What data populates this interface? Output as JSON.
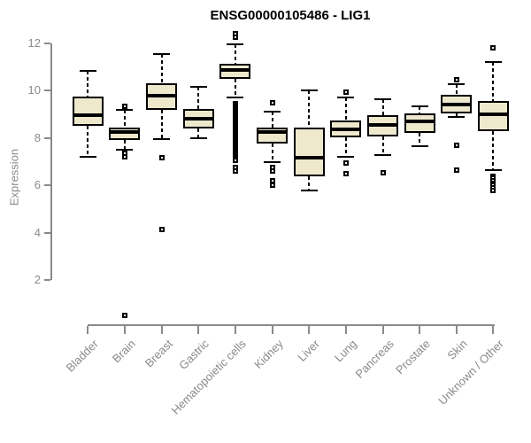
{
  "colors": {
    "box_fill": "#EEE8CD",
    "box_border": "#000000",
    "axis": "#8a8a8a",
    "tick_text": "#8a8a8a",
    "title_text": "#000000",
    "background": "#ffffff"
  },
  "chart_data": {
    "type": "boxplot",
    "title": "ENSG00000105486 - LIG1",
    "ylabel": "Expression",
    "xlabel": "",
    "grid": false,
    "ylim": [
      0.4,
      12.45
    ],
    "y_ticks": [
      2,
      4,
      6,
      8,
      10,
      12
    ],
    "x_label_rotation_deg": 45,
    "categories": [
      "Bladder",
      "Brain",
      "Breast",
      "Gastric",
      "Hematopoietic cells",
      "Kidney",
      "Liver",
      "Lung",
      "Pancreas",
      "Prostate",
      "Skin",
      "Unknown / Other"
    ],
    "series": [
      {
        "name": "Bladder",
        "whisker_low": 7.2,
        "q1": 8.5,
        "median": 8.95,
        "q3": 9.75,
        "whisker_high": 10.85,
        "outliers": []
      },
      {
        "name": "Brain",
        "whisker_low": 7.5,
        "q1": 7.9,
        "median": 8.27,
        "q3": 8.45,
        "whisker_high": 9.2,
        "outliers": [
          9.35,
          7.35,
          7.2,
          0.5
        ]
      },
      {
        "name": "Breast",
        "whisker_low": 7.95,
        "q1": 9.2,
        "median": 9.8,
        "q3": 10.33,
        "whisker_high": 11.55,
        "outliers": [
          7.15,
          4.15
        ]
      },
      {
        "name": "Gastric",
        "whisker_low": 8.0,
        "q1": 8.4,
        "median": 8.82,
        "q3": 9.22,
        "whisker_high": 10.15,
        "outliers": []
      },
      {
        "name": "Hematopoietic cells",
        "whisker_low": 9.7,
        "q1": 10.5,
        "median": 10.88,
        "q3": 11.15,
        "whisker_high": 11.95,
        "outliers": [
          12.4,
          12.25,
          9.45,
          9.39,
          9.33,
          9.27,
          9.21,
          9.15,
          9.09,
          9.03,
          8.97,
          8.91,
          8.85,
          8.79,
          8.73,
          8.67,
          8.61,
          8.55,
          8.49,
          8.43,
          8.37,
          8.31,
          8.25,
          8.19,
          8.13,
          8.07,
          8.01,
          7.95,
          7.89,
          7.83,
          7.77,
          7.71,
          7.65,
          7.59,
          7.53,
          7.47,
          7.41,
          7.35,
          7.29,
          7.23,
          7.17,
          7.11,
          7.05,
          6.75,
          6.6
        ]
      },
      {
        "name": "Kidney",
        "whisker_low": 7.0,
        "q1": 7.76,
        "median": 8.25,
        "q3": 8.43,
        "whisker_high": 9.1,
        "outliers": [
          9.5,
          6.75,
          6.6,
          6.2,
          6.0
        ]
      },
      {
        "name": "Liver",
        "whisker_low": 5.8,
        "q1": 6.4,
        "median": 7.15,
        "q3": 8.43,
        "whisker_high": 10.0,
        "outliers": []
      },
      {
        "name": "Lung",
        "whisker_low": 7.2,
        "q1": 8.03,
        "median": 8.37,
        "q3": 8.74,
        "whisker_high": 9.72,
        "outliers": [
          9.95,
          6.95,
          6.5
        ]
      },
      {
        "name": "Pancreas",
        "whisker_low": 7.28,
        "q1": 8.06,
        "median": 8.55,
        "q3": 8.95,
        "whisker_high": 9.65,
        "outliers": [
          6.55
        ]
      },
      {
        "name": "Prostate",
        "whisker_low": 7.66,
        "q1": 8.22,
        "median": 8.69,
        "q3": 9.05,
        "whisker_high": 9.34,
        "outliers": []
      },
      {
        "name": "Skin",
        "whisker_low": 8.88,
        "q1": 9.03,
        "median": 9.4,
        "q3": 9.82,
        "whisker_high": 10.28,
        "outliers": [
          10.45,
          7.7,
          6.65
        ]
      },
      {
        "name": "Unknown / Other",
        "whisker_low": 6.65,
        "q1": 8.28,
        "median": 9.0,
        "q3": 9.57,
        "whisker_high": 11.2,
        "outliers": [
          11.8,
          6.4,
          6.3,
          6.2,
          6.1,
          6.0,
          5.9,
          5.8
        ]
      }
    ]
  }
}
